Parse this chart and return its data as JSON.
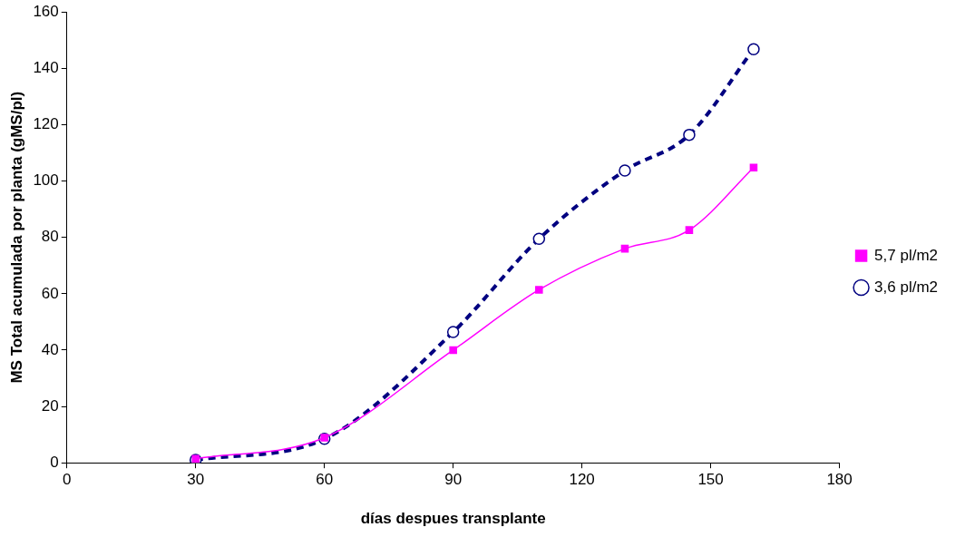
{
  "chart_data": {
    "type": "line",
    "xlabel": "días despues transplante",
    "ylabel": "MS Total acumulada por planta (gMS/pl)",
    "x": [
      30,
      60,
      90,
      110,
      130,
      145,
      160
    ],
    "series": [
      {
        "name": "3,6 pl/m2",
        "color": "#000080",
        "values": [
          1,
          8.5,
          46.4,
          79.5,
          103.7,
          116.4,
          146.8
        ],
        "marker": "circle",
        "line_style": "dashed"
      },
      {
        "name": "5,7 pl/m2",
        "color": "#ff00ff",
        "values": [
          1.4,
          8.9,
          40,
          61.4,
          76,
          82.6,
          104.8
        ],
        "marker": "square",
        "line_style": "solid"
      }
    ],
    "xlim": [
      0,
      180
    ],
    "xticks": [
      0,
      30,
      60,
      90,
      120,
      150,
      180
    ],
    "ylim": [
      0,
      160
    ],
    "yticks": [
      0,
      20,
      40,
      60,
      80,
      100,
      120,
      140,
      160
    ],
    "grid": false,
    "legend": "right"
  }
}
